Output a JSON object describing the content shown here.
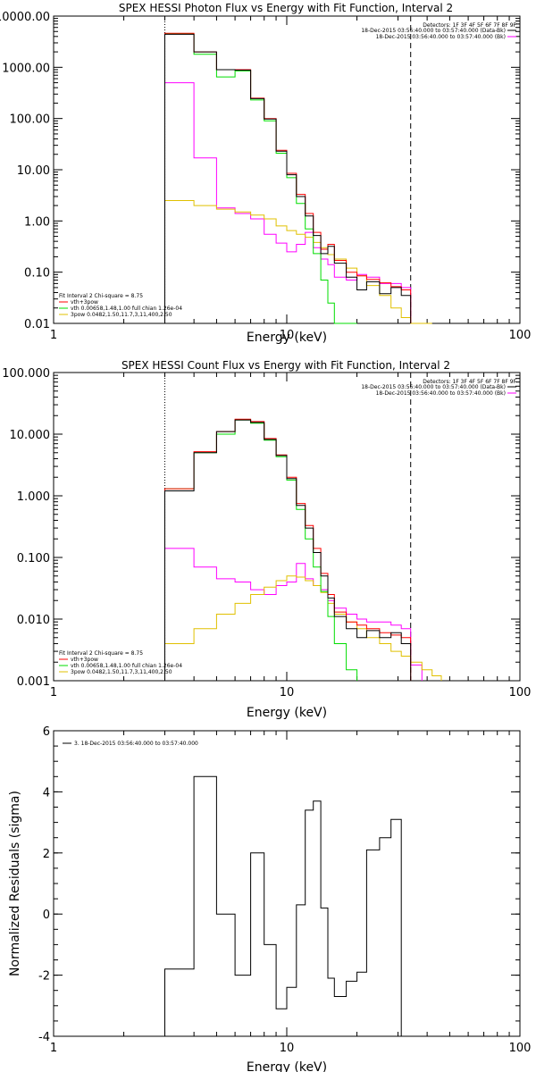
{
  "chart_data": [
    {
      "type": "line",
      "title": "SPEX HESSI Photon Flux vs Energy with Fit Function, Interval 2",
      "xlabel": "Energy (keV)",
      "ylabel": "",
      "x_scale": "log",
      "y_scale": "log",
      "xlim": [
        1,
        100
      ],
      "ylim": [
        0.01,
        10000
      ],
      "x_ticks": [
        1,
        10,
        100
      ],
      "x_tick_labels": [
        "1",
        "10",
        "100"
      ],
      "y_ticks": [
        0.01,
        0.1,
        1,
        10,
        100,
        1000,
        10000
      ],
      "y_tick_labels": [
        "0.01",
        "0.10",
        "1.00",
        "10.00",
        "100.00",
        "1000.00",
        "10000.00"
      ],
      "detectors_text": "Detectors: 1F 3F 4F 5F 6F 7F 8F 9F",
      "legend_top": [
        {
          "text": "18-Dec-2015 03:56:40.000 to 03:57:40.000 (Data-Bk)",
          "color": "#000000"
        },
        {
          "text": "18-Dec-2015 03:56:40.000 to 03:57:40.000 (Bk)",
          "color": "#ff00ff"
        }
      ],
      "legend_bottom": [
        {
          "text": "Fit Interval 2   Chi-square = 8.75",
          "color": "#000000",
          "line": false
        },
        {
          "text": "vth+3pow",
          "color": "#ff0000",
          "line": true
        },
        {
          "text": "vth 0.00658,1.48,1.00   full chian 1.26e-04",
          "color": "#00dd00",
          "line": true
        },
        {
          "text": "3pow 0.0482,1.50,11.7,3,11,400,2.50",
          "color": "#e0c000",
          "line": true
        }
      ],
      "vlines": [
        {
          "x": 3.0,
          "style": "dotted",
          "color": "#000000"
        },
        {
          "x": 34.0,
          "style": "dashed",
          "color": "#000000"
        }
      ],
      "bin_edges": [
        3.0,
        4.0,
        5.0,
        6.0,
        7.0,
        8.0,
        9.0,
        10.0,
        11.0,
        12.0,
        13.0,
        14.0,
        15.0,
        16.0,
        18.0,
        20.0,
        22.0,
        25.0,
        28.0,
        31.0,
        34.0,
        38.0,
        42.0,
        46.0
      ],
      "series": [
        {
          "name": "",
          "color": "#ff00ff",
          "values": [
            500,
            17,
            1.8,
            1.4,
            1.1,
            0.55,
            0.37,
            0.25,
            0.35,
            0.6,
            0.3,
            0.18,
            0.14,
            0.08,
            0.07,
            0.09,
            0.08,
            0.06,
            0.06,
            0.05
          ]
        },
        {
          "name": "",
          "color": "#e0c000",
          "values": [
            2.5,
            2.0,
            1.7,
            1.5,
            1.3,
            1.1,
            0.8,
            0.65,
            0.55,
            0.48,
            0.38,
            0.3,
            0.22,
            0.18,
            0.12,
            0.085,
            0.055,
            0.035,
            0.02,
            0.013,
            0.009,
            0.006
          ]
        },
        {
          "name": "",
          "color": "#00dd00",
          "values": [
            4500,
            1800,
            650,
            850,
            230,
            90,
            21,
            7,
            2.2,
            0.7,
            0.23,
            0.07,
            0.025,
            0.009,
            0.004
          ]
        },
        {
          "name": "",
          "color": "#ff0000",
          "values": [
            4600,
            2000,
            900,
            900,
            250,
            100,
            24,
            8.5,
            3.3,
            1.4,
            0.6,
            0.28,
            0.35,
            0.17,
            0.1,
            0.085,
            0.072,
            0.062,
            0.052,
            0.045
          ]
        },
        {
          "name": "",
          "color": "#000000",
          "values": [
            4400,
            2000,
            900,
            880,
            245,
            98,
            23,
            8,
            3,
            1.25,
            0.52,
            0.23,
            0.32,
            0.15,
            0.08,
            0.045,
            0.065,
            0.038,
            0.05,
            0.035
          ]
        }
      ]
    },
    {
      "type": "line",
      "title": "SPEX HESSI Count Flux vs Energy with Fit Function, Interval 2",
      "xlabel": "Energy (keV)",
      "ylabel": "",
      "x_scale": "log",
      "y_scale": "log",
      "xlim": [
        1,
        100
      ],
      "ylim": [
        0.001,
        100
      ],
      "x_ticks": [
        1,
        10,
        100
      ],
      "x_tick_labels": [
        "1",
        "10",
        "100"
      ],
      "y_ticks": [
        0.001,
        0.01,
        0.1,
        1,
        10,
        100
      ],
      "y_tick_labels": [
        "0.001",
        "0.010",
        "0.100",
        "1.000",
        "10.000",
        "100.000"
      ],
      "detectors_text": "Detectors: 1F 3F 4F 5F 6F 7F 8F 9F",
      "legend_top": [
        {
          "text": "18-Dec-2015 03:56:40.000 to 03:57:40.000 (Data-Bk)",
          "color": "#000000"
        },
        {
          "text": "18-Dec-2015 03:56:40.000 to 03:57:40.000 (Bk)",
          "color": "#ff00ff"
        }
      ],
      "legend_bottom": [
        {
          "text": "Fit Interval 2   Chi-square = 8.75",
          "color": "#000000",
          "line": false
        },
        {
          "text": "vth+3pow",
          "color": "#ff0000",
          "line": true
        },
        {
          "text": "vth 0.00658,1.48,1.00   full chian 1.26e-04",
          "color": "#00dd00",
          "line": true
        },
        {
          "text": "3pow 0.0482,1.50,11.7,3,11,400,2.50",
          "color": "#e0c000",
          "line": true
        }
      ],
      "vlines": [
        {
          "x": 3.0,
          "style": "dotted",
          "color": "#000000"
        },
        {
          "x": 34.0,
          "style": "dashed",
          "color": "#000000"
        }
      ],
      "bin_edges": [
        3.0,
        4.0,
        5.0,
        6.0,
        7.0,
        8.0,
        9.0,
        10.0,
        11.0,
        12.0,
        13.0,
        14.0,
        15.0,
        16.0,
        18.0,
        20.0,
        22.0,
        25.0,
        28.0,
        31.0,
        34.0,
        38.0,
        42.0,
        46.0
      ],
      "series": [
        {
          "name": "",
          "color": "#ff00ff",
          "values": [
            0.14,
            0.07,
            0.045,
            0.04,
            0.03,
            0.025,
            0.035,
            0.04,
            0.08,
            0.045,
            0.035,
            0.03,
            0.02,
            0.015,
            0.012,
            0.01,
            0.009,
            0.009,
            0.008,
            0.007,
            0.0018
          ]
        },
        {
          "name": "",
          "color": "#e0c000",
          "values": [
            0.004,
            0.007,
            0.012,
            0.018,
            0.025,
            0.033,
            0.042,
            0.05,
            0.048,
            0.042,
            0.035,
            0.027,
            0.018,
            0.012,
            0.009,
            0.007,
            0.005,
            0.004,
            0.003,
            0.0025,
            0.002,
            0.0015,
            0.0012
          ]
        },
        {
          "name": "",
          "color": "#00dd00",
          "values": [
            1.3,
            5,
            10,
            17,
            15,
            8,
            4.3,
            1.8,
            0.6,
            0.2,
            0.07,
            0.028,
            0.011,
            0.004,
            0.0015
          ]
        },
        {
          "name": "",
          "color": "#ff0000",
          "values": [
            1.3,
            5.2,
            11,
            17.5,
            16,
            8.5,
            4.6,
            2,
            0.75,
            0.33,
            0.14,
            0.055,
            0.025,
            0.013,
            0.009,
            0.008,
            0.007,
            0.006,
            0.0055,
            0.005
          ]
        },
        {
          "name": "",
          "color": "#000000",
          "values": [
            1.2,
            5,
            11,
            17,
            15.5,
            8.2,
            4.5,
            1.9,
            0.7,
            0.3,
            0.12,
            0.05,
            0.022,
            0.011,
            0.007,
            0.005,
            0.0065,
            0.005,
            0.006,
            0.004
          ]
        }
      ]
    },
    {
      "type": "line",
      "title": "",
      "xlabel": "Energy (keV)",
      "ylabel": "Normalized Residuals (sigma)",
      "x_scale": "log",
      "y_scale": "linear",
      "xlim": [
        1,
        100
      ],
      "ylim": [
        -4,
        6
      ],
      "x_ticks": [
        1,
        10,
        100
      ],
      "x_tick_labels": [
        "1",
        "10",
        "100"
      ],
      "y_ticks": [
        -4,
        -2,
        0,
        2,
        4,
        6
      ],
      "y_tick_labels": [
        "-4",
        "-2",
        "0",
        "2",
        "4",
        "6"
      ],
      "legend_top": [
        {
          "text": "3. 18-Dec-2015 03:56:40.000 to 03:57:40.000",
          "color": "#000000"
        }
      ],
      "bin_edges": [
        3.0,
        4.0,
        5.0,
        6.0,
        7.0,
        8.0,
        9.0,
        10.0,
        11.0,
        12.0,
        13.0,
        14.0,
        15.0,
        16.0,
        18.0,
        20.0,
        22.0,
        25.0,
        28.0,
        31.0,
        34.0
      ],
      "series": [
        {
          "name": "",
          "color": "#000000",
          "values": [
            -1.8,
            4.5,
            0,
            -2,
            2,
            -1,
            -3.1,
            -2.4,
            0.3,
            3.4,
            3.7,
            0.2,
            -2.1,
            -2.7,
            -2.2,
            -1.9,
            2.1,
            2.5,
            3.1
          ]
        }
      ]
    }
  ]
}
